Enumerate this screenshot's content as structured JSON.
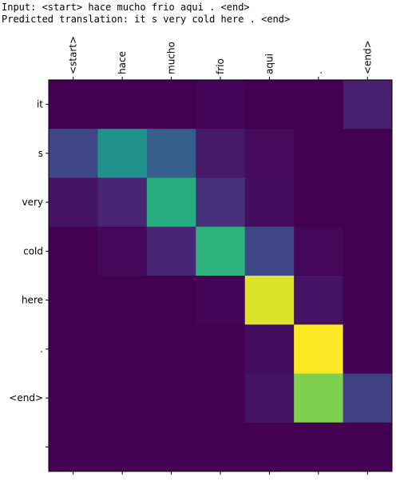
{
  "header": {
    "input_line": "Input: <start> hace mucho frio aqui . <end>",
    "prediction_line": "Predicted translation: it s very cold here . <end>"
  },
  "chart_data": {
    "type": "heatmap",
    "title": "",
    "xlabel": "",
    "ylabel": "",
    "x_ticks": [
      "<start>",
      "hace",
      "mucho",
      "frio",
      "aqui",
      ".",
      "<end>"
    ],
    "y_ticks": [
      "it",
      "s",
      "very",
      "cold",
      "here",
      ".",
      "<end>",
      ""
    ],
    "colormap": "viridis",
    "value_range": [
      0,
      1
    ],
    "values": [
      [
        0.0,
        0.0,
        0.0,
        0.01,
        0.0,
        0.0,
        0.1
      ],
      [
        0.22,
        0.5,
        0.3,
        0.08,
        0.03,
        0.0,
        0.0
      ],
      [
        0.06,
        0.12,
        0.62,
        0.15,
        0.04,
        0.0,
        0.0
      ],
      [
        0.0,
        0.02,
        0.12,
        0.64,
        0.22,
        0.02,
        0.0
      ],
      [
        0.0,
        0.0,
        0.0,
        0.01,
        0.95,
        0.06,
        0.0
      ],
      [
        0.0,
        0.0,
        0.0,
        0.0,
        0.04,
        1.0,
        0.0
      ],
      [
        0.0,
        0.0,
        0.0,
        0.0,
        0.06,
        0.8,
        0.2
      ],
      [
        0.0,
        0.0,
        0.0,
        0.0,
        0.0,
        0.0,
        0.0
      ]
    ],
    "grid": false
  }
}
